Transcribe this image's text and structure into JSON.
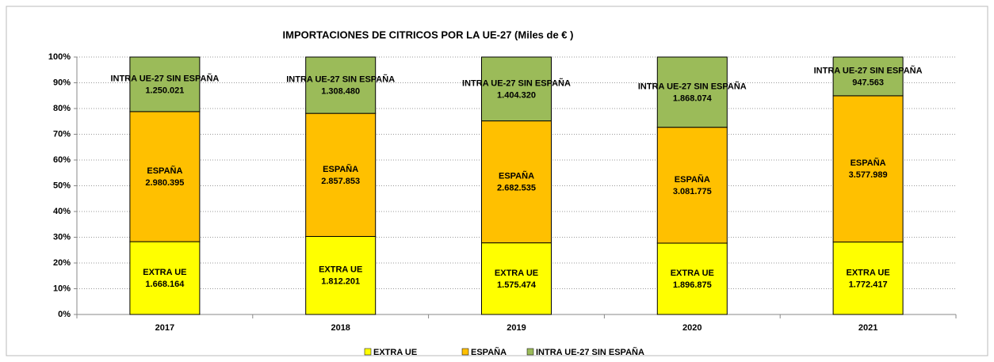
{
  "chart_data": {
    "type": "stacked_percent_bar",
    "title": "IMPORTACIONES DE CITRICOS POR LA UE-27 (Miles de € )",
    "categories": [
      "2017",
      "2018",
      "2019",
      "2020",
      "2021"
    ],
    "series": [
      {
        "name": "EXTRA UE",
        "color": "#ffff00",
        "values": [
          1668164,
          1812201,
          1575474,
          1896875,
          1772417
        ],
        "value_labels": [
          "1.668.164",
          "1.812.201",
          "1.575.474",
          "1.896.875",
          "1.772.417"
        ]
      },
      {
        "name": "ESPAÑA",
        "color": "#ffc000",
        "values": [
          2980395,
          2857853,
          2682535,
          3081775,
          3577989
        ],
        "value_labels": [
          "2.980.395",
          "2.857.853",
          "2.682.535",
          "3.081.775",
          "3.577.989"
        ]
      },
      {
        "name": "INTRA UE-27 SIN ESPAÑA",
        "color": "#9bbb59",
        "values": [
          1250021,
          1308480,
          1404320,
          1868074,
          947563
        ],
        "value_labels": [
          "1.250.021",
          "1.308.480",
          "1.404.320",
          "1.868.074",
          "947.563"
        ]
      }
    ],
    "ylim": [
      0,
      100
    ],
    "yticks": [
      {
        "value": 0,
        "label": "0%"
      },
      {
        "value": 10,
        "label": "10%"
      },
      {
        "value": 20,
        "label": "20%"
      },
      {
        "value": 30,
        "label": "30%"
      },
      {
        "value": 40,
        "label": "40%"
      },
      {
        "value": 50,
        "label": "50%"
      },
      {
        "value": 60,
        "label": "60%"
      },
      {
        "value": 70,
        "label": "70%"
      },
      {
        "value": 80,
        "label": "80%"
      },
      {
        "value": 90,
        "label": "90%"
      },
      {
        "value": 100,
        "label": "100%"
      }
    ],
    "grid": true,
    "legend": "bottom"
  }
}
